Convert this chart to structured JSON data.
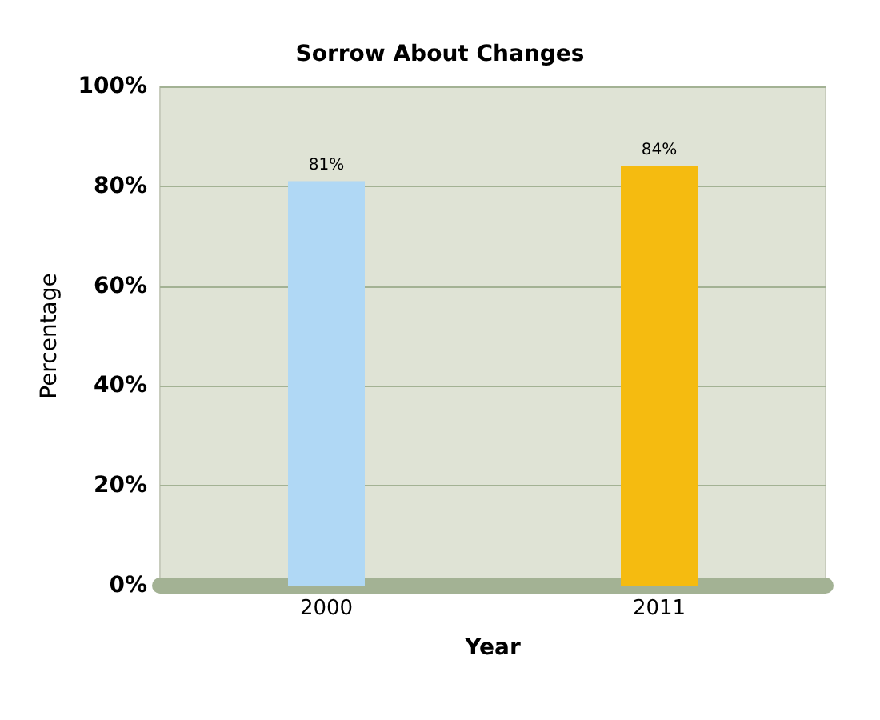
{
  "chart_data": {
    "type": "bar",
    "title": "Sorrow About Changes",
    "xlabel": "Year",
    "ylabel": "Percentage",
    "categories": [
      "2000",
      "2011"
    ],
    "values": [
      81,
      84
    ],
    "colors": [
      "#b0d8f5",
      "#f5bb10"
    ],
    "value_labels": [
      "81%",
      "84%"
    ],
    "ylim": [
      0,
      100
    ],
    "yticks": [
      {
        "value": 0,
        "label": "0%"
      },
      {
        "value": 20,
        "label": "20%"
      },
      {
        "value": 40,
        "label": "40%"
      },
      {
        "value": 60,
        "label": "60%"
      },
      {
        "value": 80,
        "label": "80%"
      },
      {
        "value": 100,
        "label": "100%"
      }
    ],
    "grid": "y"
  }
}
